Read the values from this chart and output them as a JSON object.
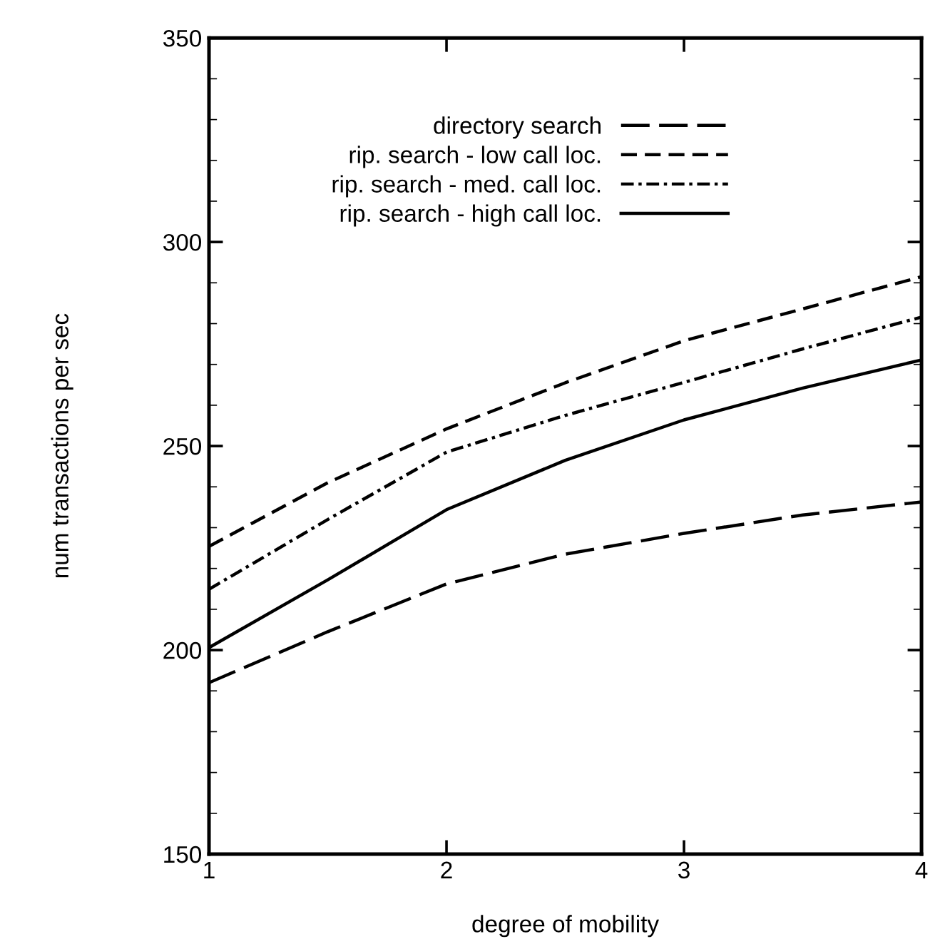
{
  "chart_data": {
    "type": "line",
    "xlabel": "degree of mobility",
    "ylabel": "num transactions per sec",
    "xlim": [
      1,
      4
    ],
    "ylim": [
      150,
      350
    ],
    "xticks": [
      1,
      2,
      3,
      4
    ],
    "yticks": [
      150,
      200,
      250,
      300,
      350
    ],
    "legend": "top",
    "grid": false,
    "marker": "none",
    "x": [
      1,
      1.5,
      2,
      2.5,
      3,
      3.5,
      4
    ],
    "series": [
      {
        "name": "directory search",
        "color": "#000000",
        "line_style": "longdash",
        "values": [
          192,
          204.5,
          216.2,
          223.5,
          228.6,
          233.1,
          236.3
        ]
      },
      {
        "name": "rip. search - low call loc.",
        "color": "#000000",
        "line_style": "dashed",
        "values": [
          225.4,
          241,
          254.2,
          265.5,
          275.8,
          283.6,
          291.5
        ]
      },
      {
        "name": "rip. search - med. call loc.",
        "color": "#000000",
        "line_style": "dashdot",
        "values": [
          214.9,
          232,
          248.5,
          257.5,
          265.6,
          273.8,
          281.6
        ]
      },
      {
        "name": "rip. search - high call loc.",
        "color": "#000000",
        "line_style": "solid",
        "values": [
          200.6,
          217.2,
          234.4,
          246.5,
          256.4,
          264.2,
          271.1
        ]
      }
    ]
  }
}
